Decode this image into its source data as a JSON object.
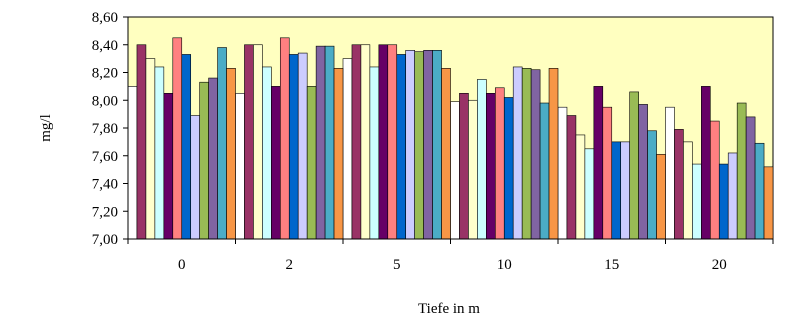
{
  "chart_data": {
    "type": "bar",
    "title": "",
    "xlabel": "Tiefe in m",
    "ylabel": "mg/l",
    "ylim": [
      7.0,
      8.6
    ],
    "y_ticks": [
      "7,00",
      "7,20",
      "7,40",
      "7,60",
      "7,80",
      "8,00",
      "8,20",
      "8,40",
      "8,60"
    ],
    "categories": [
      "0",
      "2",
      "5",
      "10",
      "15",
      "20"
    ],
    "grid": false,
    "legend": "none",
    "plot_background": "#FFFFC0",
    "series": [
      {
        "color": "#FFFFFF",
        "values": [
          8.1,
          8.05,
          8.3,
          7.99,
          7.95,
          7.95
        ]
      },
      {
        "color": "#993366",
        "values": [
          8.4,
          8.4,
          8.4,
          8.05,
          7.89,
          7.79
        ]
      },
      {
        "color": "#FFFFCC",
        "values": [
          8.3,
          8.4,
          8.4,
          8.0,
          7.75,
          7.7
        ]
      },
      {
        "color": "#CCFFFF",
        "values": [
          8.24,
          8.24,
          8.24,
          8.15,
          7.65,
          7.54
        ]
      },
      {
        "color": "#660066",
        "values": [
          8.05,
          8.1,
          8.4,
          8.05,
          8.1,
          8.1
        ]
      },
      {
        "color": "#FF8080",
        "values": [
          8.45,
          8.45,
          8.4,
          8.09,
          7.95,
          7.85
        ]
      },
      {
        "color": "#0066CC",
        "values": [
          8.33,
          8.33,
          8.33,
          8.02,
          7.7,
          7.54
        ]
      },
      {
        "color": "#CCCCFF",
        "values": [
          7.89,
          8.34,
          8.36,
          8.24,
          7.7,
          7.62
        ]
      },
      {
        "color": "#99BB55",
        "values": [
          8.13,
          8.1,
          8.35,
          8.23,
          8.06,
          7.98
        ]
      },
      {
        "color": "#8064A2",
        "values": [
          8.16,
          8.39,
          8.36,
          8.22,
          7.97,
          7.88
        ]
      },
      {
        "color": "#4BACC6",
        "values": [
          8.38,
          8.39,
          8.36,
          7.98,
          7.78,
          7.69
        ]
      },
      {
        "color": "#F79646",
        "values": [
          8.23,
          8.23,
          8.23,
          8.23,
          7.61,
          7.52
        ]
      }
    ]
  }
}
